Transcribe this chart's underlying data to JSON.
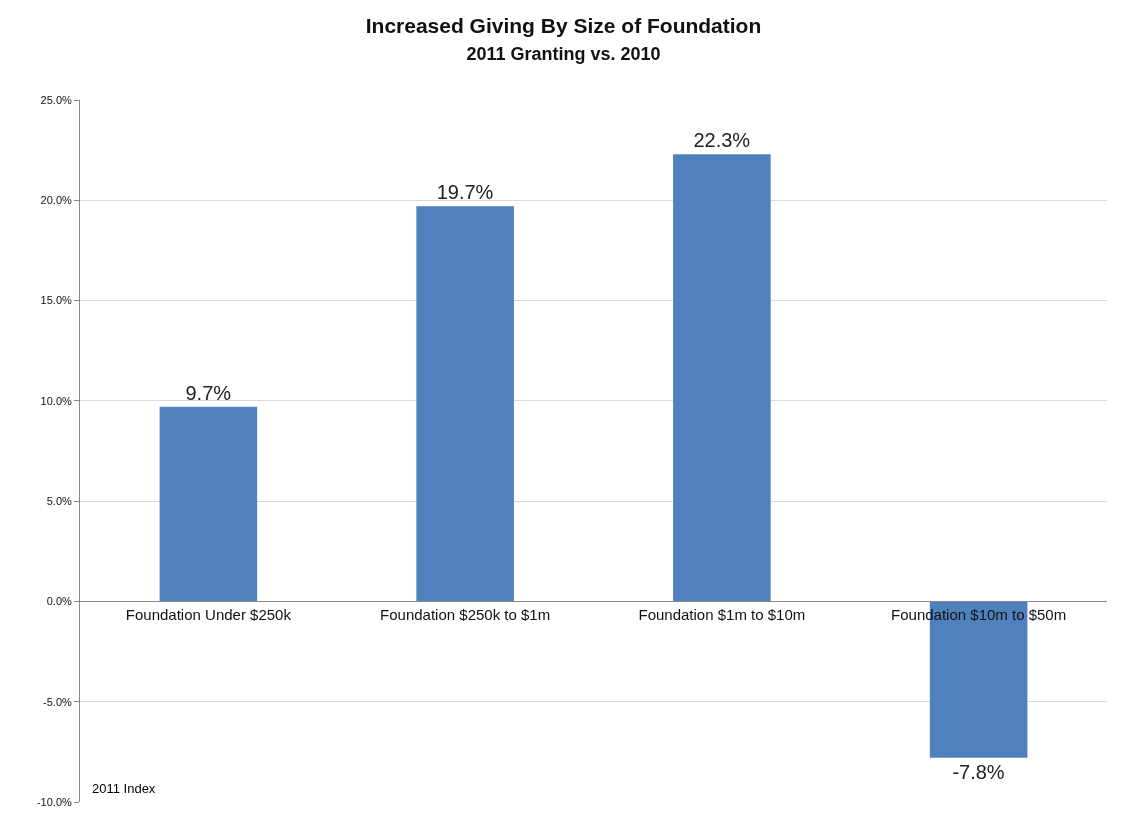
{
  "chart_data": {
    "type": "bar",
    "title": "Increased Giving By Size of Foundation",
    "subtitle": "2011 Granting vs. 2010",
    "categories": [
      "Foundation Under $250k",
      "Foundation $250k to $1m",
      "Foundation $1m to $10m",
      "Foundation $10m to $50m"
    ],
    "values": [
      9.7,
      19.7,
      22.3,
      -7.8
    ],
    "color": "#4f81bd",
    "value_labels": [
      "9.7%",
      "19.7%",
      "22.3%",
      "-7.8%"
    ],
    "ylim": [
      -10,
      25
    ],
    "yticks": [
      {
        "value": -10,
        "label": "-10.0%"
      },
      {
        "value": -5,
        "label": "-5.0%"
      },
      {
        "value": 0,
        "label": "0.0%"
      },
      {
        "value": 5,
        "label": "5.0%"
      },
      {
        "value": 10,
        "label": "10.0%"
      },
      {
        "value": 15,
        "label": "15.0%"
      },
      {
        "value": 20,
        "label": "20.0%"
      },
      {
        "value": 25,
        "label": "25.0%"
      }
    ],
    "grid": "y",
    "annotations": [
      "2011 Index"
    ]
  }
}
